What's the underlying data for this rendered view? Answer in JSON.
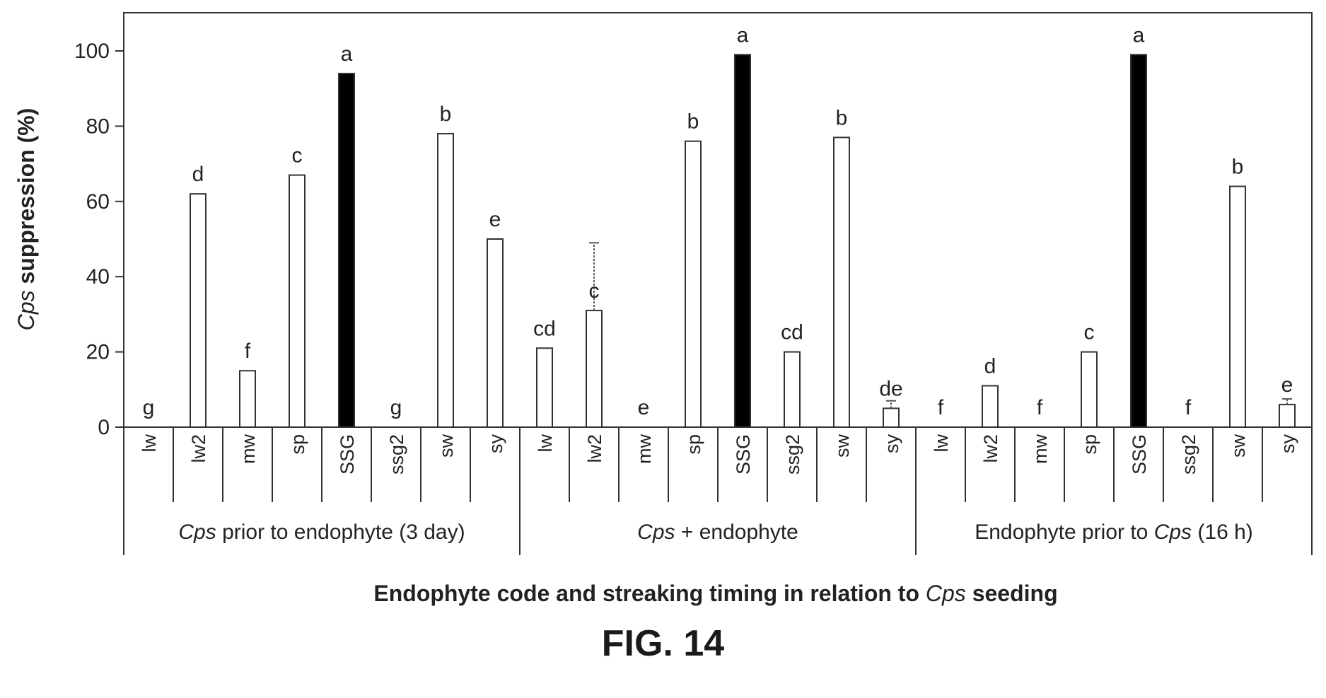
{
  "chart_data": {
    "type": "bar",
    "ylabel": {
      "italic": "Cps",
      "rest": " suppression (%)"
    },
    "xlabel": {
      "before": "Endophyte code and streaking timing in relation to ",
      "italic": "Cps",
      "after": " seeding"
    },
    "ylim": [
      0,
      100
    ],
    "yticks": [
      0,
      20,
      40,
      60,
      80,
      100
    ],
    "groups": [
      {
        "label": {
          "italic": "Cps",
          "rest": " prior to endophyte (3 day)"
        },
        "categories": [
          "lw",
          "lw2",
          "mw",
          "sp",
          "SSG",
          "ssg2",
          "sw",
          "sy"
        ],
        "values": [
          0,
          62,
          15,
          67,
          94,
          0,
          78,
          50
        ],
        "errors": [
          0,
          0,
          0,
          0,
          0,
          0,
          0,
          0
        ],
        "letters": [
          "g",
          "d",
          "f",
          "c",
          "a",
          "g",
          "b",
          "e"
        ]
      },
      {
        "label": {
          "italic": "Cps",
          "rest": " + endophyte"
        },
        "categories": [
          "lw",
          "lw2",
          "mw",
          "sp",
          "SSG",
          "ssg2",
          "sw",
          "sy"
        ],
        "values": [
          21,
          31,
          0,
          76,
          99,
          20,
          77,
          5
        ],
        "errors": [
          0,
          18,
          0,
          0,
          0,
          0,
          0,
          2
        ],
        "letters": [
          "cd",
          "c",
          "e",
          "b",
          "a",
          "cd",
          "b",
          "de"
        ]
      },
      {
        "label": {
          "before": "Endophyte prior to ",
          "italic": "Cps",
          "after": " (16 h)"
        },
        "categories": [
          "lw",
          "lw2",
          "mw",
          "sp",
          "SSG",
          "ssg2",
          "sw",
          "sy"
        ],
        "values": [
          0,
          11,
          0,
          20,
          99,
          0,
          64,
          6
        ],
        "errors": [
          0,
          0,
          0,
          0,
          0,
          0,
          0,
          1.5
        ],
        "letters": [
          "f",
          "d",
          "f",
          "c",
          "a",
          "f",
          "b",
          "e"
        ]
      }
    ],
    "highlight_category": "SSG",
    "highlight_color": "#000000",
    "bar_color": "#ffffff",
    "caption": "FIG. 14"
  }
}
